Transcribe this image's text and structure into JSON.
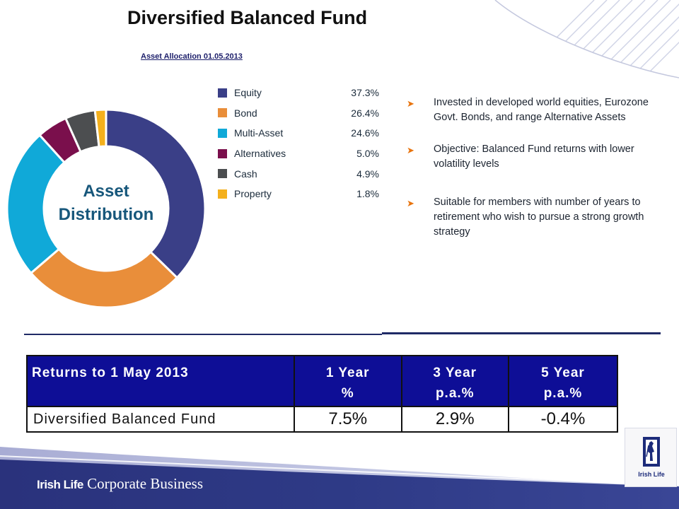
{
  "slide": {
    "title": "Diversified Balanced Fund",
    "brand": {
      "name_bold": "Irish Life",
      "name_rest": "Corporate Business",
      "logo_caption": "Irish Life"
    },
    "colors": {
      "header_blue": "#0e0e96",
      "divider": "#1f2a66",
      "footer_band": "#2c3681",
      "bullet_arrow": "#e8740e"
    }
  },
  "chart_data": {
    "type": "pie",
    "variant": "donut",
    "title": "Asset Allocation 01.05.2013",
    "center_label": [
      "Asset",
      "Distribution"
    ],
    "legend_position": "right",
    "slices": [
      {
        "label": "Equity",
        "value": 37.3,
        "display": "37.3%",
        "color": "#3a3f87"
      },
      {
        "label": "Bond",
        "value": 26.4,
        "display": "26.4%",
        "color": "#e98e3a"
      },
      {
        "label": "Multi-Asset",
        "value": 24.6,
        "display": "24.6%",
        "color": "#10a9d8"
      },
      {
        "label": "Alternatives",
        "value": 5.0,
        "display": "5.0%",
        "color": "#7a0f4c"
      },
      {
        "label": "Cash",
        "value": 4.9,
        "display": "4.9%",
        "color": "#4c4e50"
      },
      {
        "label": "Property",
        "value": 1.8,
        "display": "1.8%",
        "color": "#f4b01c"
      }
    ]
  },
  "bullets": [
    "Invested in developed world equities, Eurozone Govt. Bonds, and range Alternative Assets",
    "Objective: Balanced Fund returns with lower volatility levels",
    "Suitable for members with number of years to retirement who wish to pursue a strong growth strategy"
  ],
  "returns_table": {
    "header": {
      "label": "Returns to 1 May 2013",
      "periods": [
        {
          "line1": "1 Year",
          "line2": "%"
        },
        {
          "line1": "3 Year",
          "line2": "p.a.%"
        },
        {
          "line1": "5 Year",
          "line2": "p.a.%"
        }
      ]
    },
    "rows": [
      {
        "fund": "Diversified Balanced Fund",
        "values": [
          "7.5%",
          "2.9%",
          "-0.4%"
        ]
      }
    ]
  }
}
